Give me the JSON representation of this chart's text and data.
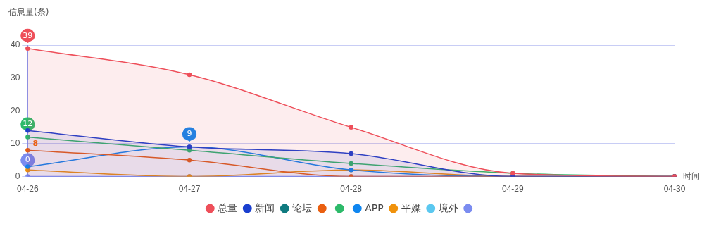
{
  "chart_data": {
    "type": "line",
    "ylabel": "信息量(条)",
    "xlabel": "时间",
    "categories": [
      "04-26",
      "04-27",
      "04-28",
      "04-29",
      "04-30"
    ],
    "ylim": [
      0,
      40
    ],
    "yticks": [
      0,
      10,
      20,
      30,
      40
    ],
    "grid": "y",
    "legend": "bottom",
    "marker": "circle",
    "series": [
      {
        "name": "总量",
        "type": "area",
        "color": "#ee4f5a",
        "values": [
          39,
          31,
          15,
          1,
          0
        ],
        "value_labels": [
          "39",
          null,
          null,
          null,
          null
        ]
      },
      {
        "name": "新闻",
        "type": "area",
        "color": "#1a3fcf",
        "values": [
          14,
          9,
          7,
          0,
          0
        ]
      },
      {
        "name": "论坛",
        "color": "#0f7a7f",
        "values": [
          null,
          null,
          null,
          null,
          null
        ]
      },
      {
        "color": "#ea5f10",
        "values": [
          8,
          5,
          0,
          0,
          0
        ],
        "value_labels": [
          "8",
          null,
          null,
          null,
          null
        ]
      },
      {
        "color": "#2dba6a",
        "values": [
          12,
          8,
          4,
          1,
          0
        ],
        "value_labels": [
          "12",
          null,
          null,
          null,
          null
        ]
      },
      {
        "name": "APP",
        "color": "#0f86f0",
        "values": [
          3,
          9,
          2,
          0,
          0
        ],
        "value_labels": [
          null,
          "9",
          null,
          null,
          null
        ]
      },
      {
        "name": "平媒",
        "color": "#f0920c",
        "values": [
          2,
          0,
          2,
          0,
          0
        ]
      },
      {
        "name": "境外",
        "color": "#5bc8f0",
        "values": [
          null,
          null,
          null,
          null,
          null
        ]
      },
      {
        "color": "#b082e8",
        "values": [
          null,
          null,
          null,
          null,
          null
        ]
      },
      {
        "color": "#7b8cf0",
        "values": [
          0,
          0,
          0,
          0,
          0
        ],
        "value_labels": [
          "0",
          null,
          null,
          null,
          null
        ]
      }
    ]
  }
}
